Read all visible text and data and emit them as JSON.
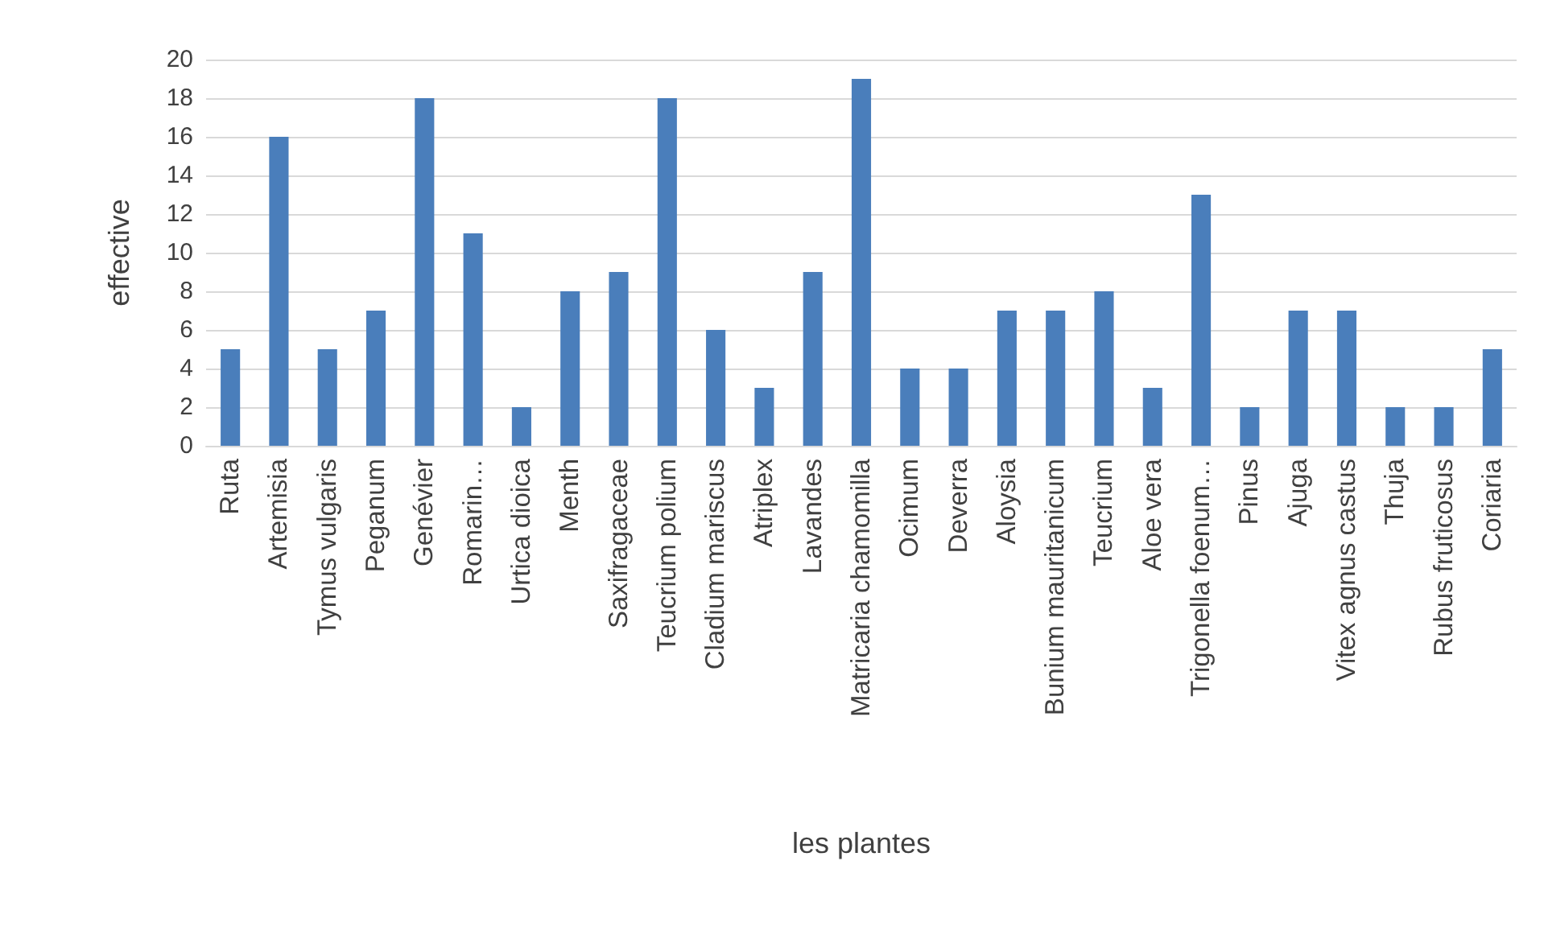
{
  "chart_data": {
    "type": "bar",
    "xlabel": "les plantes",
    "ylabel": "effective",
    "categories": [
      "Ruta",
      "Artemisia",
      "Tymus vulgaris",
      "Peganum",
      "Genévier",
      "Romarin…",
      "Urtica dioica",
      "Menth",
      "Saxifragaceae",
      "Teucrium polium",
      "Cladium mariscus",
      "Atriplex",
      "Lavandes",
      "Matricaria chamomilla",
      "Ocimum",
      "Deverra",
      "Aloysia",
      "Bunium mauritanicum",
      "Teucrium",
      "Aloe vera",
      "Trigonella foenum…",
      "Pinus",
      "Ajuga",
      "Vitex agnus castus",
      "Thuja",
      "Rubus fruticosus",
      "Coriaria"
    ],
    "values": [
      5,
      16,
      5,
      7,
      18,
      11,
      2,
      8,
      9,
      18,
      6,
      3,
      9,
      19,
      4,
      4,
      7,
      7,
      8,
      3,
      13,
      2,
      7,
      7,
      2,
      2,
      5
    ],
    "color": "#4a7ebb",
    "ylim": [
      0,
      20
    ],
    "yticks": [
      0,
      2,
      4,
      6,
      8,
      10,
      12,
      14,
      16,
      18,
      20
    ],
    "grid": "y"
  }
}
